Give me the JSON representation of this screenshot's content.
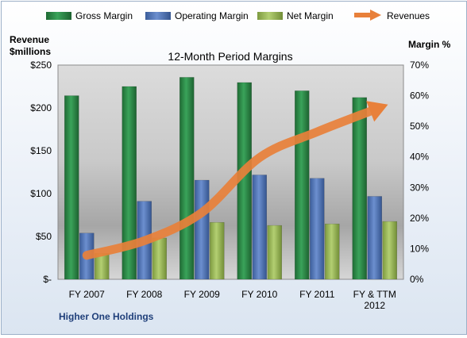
{
  "chart_data": {
    "type": "bar",
    "title": "12-Month Period Margins",
    "footer": "Higher One Holdings",
    "y_left_label_line1": "Revenue",
    "y_left_label_line2": "$millions",
    "y_right_label": "Margin %",
    "categories": [
      "FY 2007",
      "FY 2008",
      "FY 2009",
      "FY 2010",
      "FY 2011",
      "FY & TTM 2012"
    ],
    "y_left_ticks": [
      "$-",
      "$50",
      "$100",
      "$150",
      "$200",
      "$250"
    ],
    "y_right_ticks": [
      "0%",
      "10%",
      "20%",
      "30%",
      "40%",
      "50%",
      "60%",
      "70%"
    ],
    "y_left_range": [
      0,
      250
    ],
    "y_right_range": [
      0,
      70
    ],
    "series": [
      {
        "name": "Gross Margin",
        "axis": "right",
        "type": "bar",
        "color": "#2f8a4a",
        "values": [
          60,
          63,
          66,
          64.3,
          61.6,
          59.4
        ]
      },
      {
        "name": "Operating Margin",
        "axis": "right",
        "type": "bar",
        "color": "#4f73b6",
        "values": [
          15.1,
          25.5,
          32.4,
          34.1,
          33.0,
          27.1
        ]
      },
      {
        "name": "Net Margin",
        "axis": "right",
        "type": "bar",
        "color": "#9bbb59",
        "values": [
          8.5,
          13.5,
          18.6,
          17.6,
          18.1,
          18.9
        ]
      },
      {
        "name": "Revenues",
        "axis": "left",
        "type": "line",
        "color": "#e8803a",
        "values": [
          28,
          45,
          78,
          142,
          172,
          198
        ]
      }
    ],
    "legend_position": "top",
    "grid": false
  }
}
